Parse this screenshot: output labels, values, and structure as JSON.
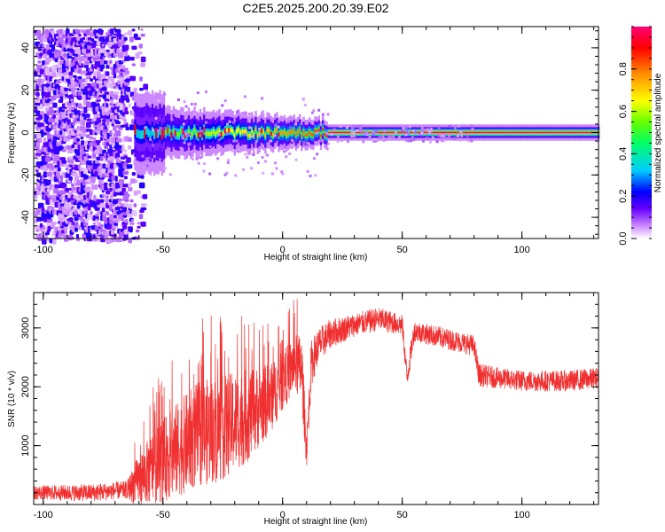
{
  "title": "C2E5.2025.200.20.39.E02",
  "chart_data": [
    {
      "type": "heatmap",
      "title": "C2E5.2025.200.20.39.E02",
      "xlabel": "Height of straight line (km)",
      "ylabel": "Frequency (Hz)",
      "xlim": [
        -104,
        132
      ],
      "ylim": [
        -50,
        50
      ],
      "x_ticks": [
        -100,
        -50,
        0,
        50,
        100
      ],
      "y_ticks": [
        -40,
        -20,
        0,
        20,
        40
      ],
      "colorbar": {
        "label": "Normalized spectral amplitude",
        "range": [
          0,
          1
        ],
        "ticks": [
          0.0,
          0.2,
          0.4,
          0.6,
          0.8
        ],
        "colors": [
          "#ffffff",
          "#cc88ff",
          "#6600ff",
          "#0000ff",
          "#00ccff",
          "#00ff66",
          "#66ff00",
          "#ffff00",
          "#ff8800",
          "#ff0000",
          "#ff0077"
        ]
      },
      "features": [
        {
          "name": "noise",
          "x_range": [
            -104,
            -58
          ],
          "freq_range": [
            -50,
            50
          ],
          "amplitude": 0.1
        },
        {
          "name": "signal",
          "x_range": [
            -62,
            132
          ],
          "center_freq": 0,
          "peak_amplitude": 1.0
        }
      ]
    },
    {
      "type": "line",
      "xlabel": "Height of straight line (km)",
      "ylabel": "SNR (10 * v/v)",
      "xlim": [
        -104,
        132
      ],
      "ylim": [
        0,
        3600
      ],
      "x_ticks": [
        -100,
        -50,
        0,
        50,
        100
      ],
      "y_ticks": [
        1000,
        2000,
        3000
      ],
      "color": "#f03030",
      "envelope": {
        "x": [
          -104,
          -80,
          -65,
          -62,
          -55,
          -45,
          -35,
          -25,
          -15,
          -5,
          0,
          5,
          8,
          10,
          12,
          15,
          20,
          30,
          40,
          50,
          52,
          55,
          60,
          70,
          80,
          82,
          90,
          100,
          110,
          120,
          132
        ],
        "mean": [
          200,
          200,
          250,
          350,
          600,
          900,
          1200,
          1300,
          1500,
          1800,
          2100,
          2400,
          2300,
          900,
          2400,
          2700,
          2900,
          3050,
          3150,
          3050,
          2150,
          2950,
          2900,
          2800,
          2700,
          2200,
          2150,
          2100,
          2100,
          2100,
          2150
        ],
        "spread": [
          120,
          150,
          150,
          350,
          600,
          800,
          900,
          900,
          800,
          600,
          500,
          500,
          600,
          300,
          400,
          300,
          250,
          200,
          200,
          180,
          200,
          180,
          180,
          180,
          180,
          200,
          180,
          180,
          180,
          180,
          180
        ]
      }
    }
  ]
}
